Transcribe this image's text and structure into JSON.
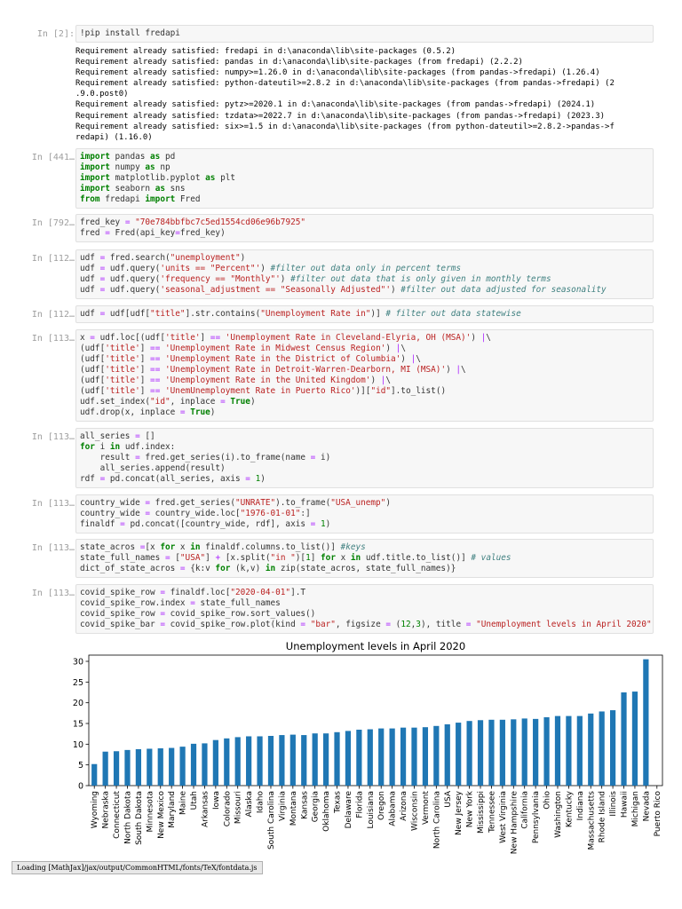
{
  "cells": [
    {
      "prompt": "In [2]:",
      "code": [
        "!pip install fredapi"
      ],
      "output": [
        "Requirement already satisfied: fredapi in d:\\anaconda\\lib\\site-packages (0.5.2)",
        "Requirement already satisfied: pandas in d:\\anaconda\\lib\\site-packages (from fredapi) (2.2.2)",
        "Requirement already satisfied: numpy>=1.26.0 in d:\\anaconda\\lib\\site-packages (from pandas->fredapi) (1.26.4)",
        "Requirement already satisfied: python-dateutil>=2.8.2 in d:\\anaconda\\lib\\site-packages (from pandas->fredapi) (2",
        ".9.0.post0)",
        "Requirement already satisfied: pytz>=2020.1 in d:\\anaconda\\lib\\site-packages (from pandas->fredapi) (2024.1)",
        "Requirement already satisfied: tzdata>=2022.7 in d:\\anaconda\\lib\\site-packages (from pandas->fredapi) (2023.3)",
        "Requirement already satisfied: six>=1.5 in d:\\anaconda\\lib\\site-packages (from python-dateutil>=2.8.2->pandas->f",
        "redapi) (1.16.0)"
      ]
    },
    {
      "prompt": "In [441…",
      "code": [
        "import pandas as pd",
        "import numpy as np",
        "import matplotlib.pyplot as plt",
        "import seaborn as sns",
        "from fredapi import Fred"
      ]
    },
    {
      "prompt": "In [792…",
      "code": [
        "fred_key = \"70e784bbfbc7c5ed1554cd06e96b7925\"",
        "fred = Fred(api_key=fred_key)"
      ]
    },
    {
      "prompt": "In [112…",
      "code": [
        "udf = fred.search(\"unemployment\")",
        "udf = udf.query('units == \"Percent\"') #filter out data only in percent terms",
        "udf = udf.query('frequency == \"Monthly\"') #filter out data that is only given in monthly terms",
        "udf = udf.query('seasonal_adjustment == \"Seasonally Adjusted\"') #filter out data adjusted for seasonality"
      ]
    },
    {
      "prompt": "In [112…",
      "code": [
        "udf = udf[udf[\"title\"].str.contains(\"Unemployment Rate in\")] # filter out data statewise"
      ]
    },
    {
      "prompt": "In [113…",
      "code": [
        "x = udf.loc[(udf['title'] == 'Unemployment Rate in Cleveland-Elyria, OH (MSA)') |\\",
        "(udf['title'] == 'Unemployment Rate in Midwest Census Region') |\\",
        "(udf['title'] == 'Unemployment Rate in the District of Columbia') |\\",
        "(udf['title'] == 'Unemployment Rate in Detroit-Warren-Dearborn, MI (MSA)') |\\",
        "(udf['title'] == 'Unemployment Rate in the United Kingdom') |\\",
        "(udf['title'] == 'UnemUnemployment Rate in Puerto Rico')][\"id\"].to_list()",
        "udf.set_index(\"id\", inplace = True)",
        "udf.drop(x, inplace = True)"
      ]
    },
    {
      "prompt": "In [113…",
      "code": [
        "all_series = []",
        "for i in udf.index:",
        "    result = fred.get_series(i).to_frame(name = i)",
        "    all_series.append(result)",
        "rdf = pd.concat(all_series, axis = 1)"
      ]
    },
    {
      "prompt": "In [113…",
      "code": [
        "country_wide = fred.get_series(\"UNRATE\").to_frame(\"USA_unemp\")",
        "country_wide = country_wide.loc[\"1976-01-01\":]",
        "finaldf = pd.concat([country_wide, rdf], axis = 1)"
      ]
    },
    {
      "prompt": "In [113…",
      "code": [
        "state_acros =[x for x in finaldf.columns.to_list()] #keys",
        "state_full_names = [\"USA\"] + [x.split(\"in \")[1] for x in udf.title.to_list()] # values",
        "dict_of_state_acros = {k:v for (k,v) in zip(state_acros, state_full_names)}"
      ]
    },
    {
      "prompt": "In [113…",
      "code": [
        "covid_spike_row = finaldf.loc[\"2020-04-01\"].T",
        "covid_spike_row.index = state_full_names",
        "covid_spike_row = covid_spike_row.sort_values()",
        "covid_spike_bar = covid_spike_row.plot(kind = \"bar\", figsize = (12,3), title = \"Unemployment levels in April 2020\")"
      ]
    }
  ],
  "chart_data": {
    "type": "bar",
    "title": "Unemployment levels in April 2020",
    "xlabel": "",
    "ylabel": "",
    "ylim": [
      0,
      31.5
    ],
    "yticks": [
      0,
      5,
      10,
      15,
      20,
      25,
      30
    ],
    "bar_color": "#1f77b4",
    "categories": [
      "Wyoming",
      "Nebraska",
      "Connecticut",
      "North Dakota",
      "South Dakota",
      "Minnesota",
      "New Mexico",
      "Maryland",
      "Maine",
      "Utah",
      "Arkansas",
      "Iowa",
      "Colorado",
      "Missouri",
      "Alaska",
      "Idaho",
      "South Carolina",
      "Virginia",
      "Montana",
      "Kansas",
      "Georgia",
      "Oklahoma",
      "Texas",
      "Delaware",
      "Florida",
      "Louisiana",
      "Oregon",
      "Alabama",
      "Arizona",
      "Wisconsin",
      "Vermont",
      "North Carolina",
      "USA",
      "New Jersey",
      "New York",
      "Mississippi",
      "Tennessee",
      "West Virginia",
      "New Hampshire",
      "California",
      "Pennsylvania",
      "Ohio",
      "Washington",
      "Kentucky",
      "Indiana",
      "Massachusetts",
      "Rhode Island",
      "Illinois",
      "Hawaii",
      "Michigan",
      "Nevada",
      "Puerto Rico"
    ],
    "values": [
      5.2,
      8.2,
      8.3,
      8.6,
      8.8,
      8.9,
      9.0,
      9.1,
      9.4,
      10.1,
      10.2,
      11.0,
      11.4,
      11.7,
      11.9,
      11.9,
      12.0,
      12.2,
      12.3,
      12.2,
      12.6,
      12.6,
      12.9,
      13.2,
      13.5,
      13.6,
      13.8,
      13.8,
      14.0,
      14.0,
      14.1,
      14.4,
      14.8,
      15.2,
      15.6,
      15.8,
      15.9,
      15.9,
      16.0,
      16.2,
      16.1,
      16.5,
      16.8,
      16.8,
      16.8,
      17.4,
      17.9,
      18.2,
      22.5,
      22.7,
      30.5,
      null
    ]
  },
  "status_text": "Loading [MathJax]/jax/output/CommonHTML/fonts/TeX/fontdata.js"
}
